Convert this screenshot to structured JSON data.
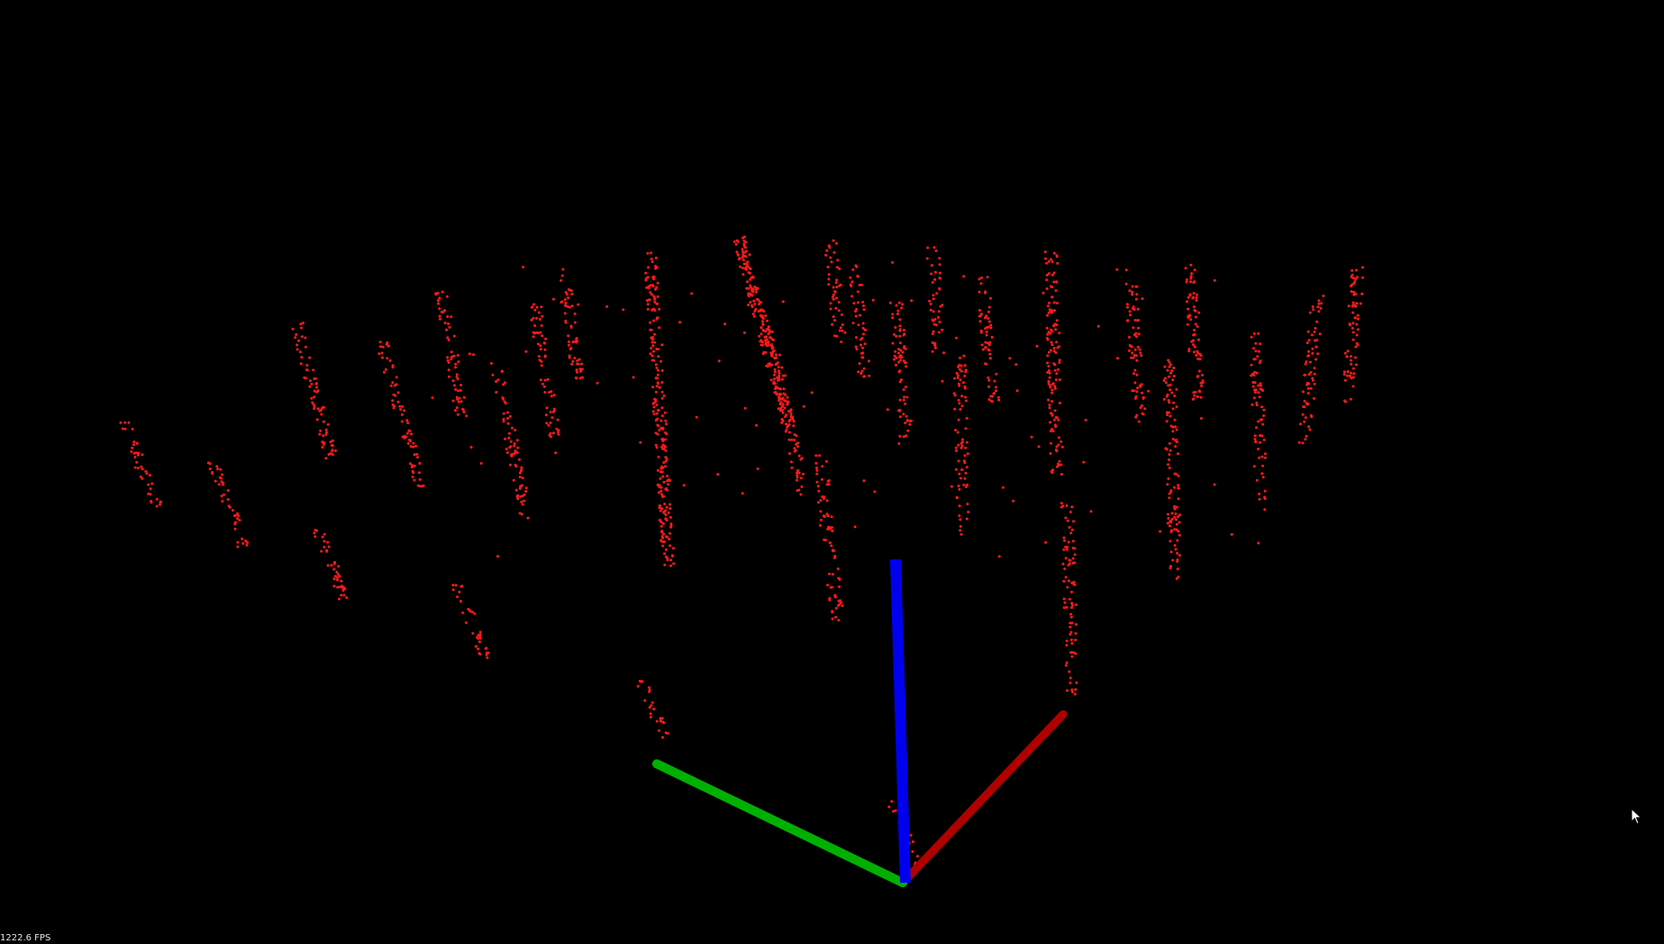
{
  "viewer": {
    "fps_text": "1222.6 FPS",
    "background": "#000000",
    "point_color": "#ff1a1a"
  },
  "axes": {
    "x_color": "#b00000",
    "y_color": "#00b000",
    "z_color": "#0000ee"
  },
  "cursor": {
    "icon": "arrow-cursor-icon"
  }
}
